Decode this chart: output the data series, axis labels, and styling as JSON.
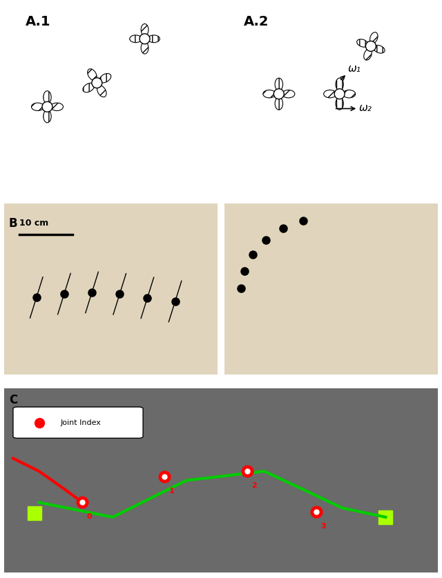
{
  "panel_labels": {
    "A1": "A.1",
    "A2": "A.2",
    "B": "B",
    "C": "C"
  },
  "omega_labels": {
    "w1": "ω₁",
    "w2": "ω₂"
  },
  "scale_bar": "10 cm",
  "joint_legend": "Joint Index",
  "joint_numbers": [
    "0",
    "1",
    "2",
    "3"
  ],
  "bg_color": "#ffffff"
}
